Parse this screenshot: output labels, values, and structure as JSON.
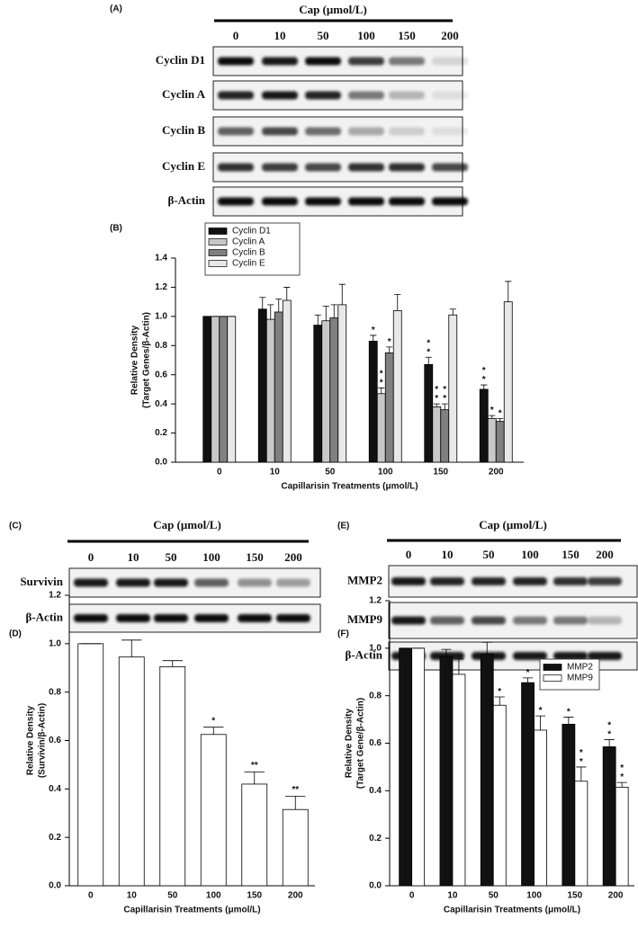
{
  "panel_labels": [
    "(A)",
    "(B)",
    "(C)",
    "(D)",
    "(E)",
    "(F)"
  ],
  "blots": [
    {
      "header": "Cap (μmol/L)",
      "lanes": [
        "0",
        "10",
        "50",
        "100",
        "150",
        "200"
      ],
      "rows": [
        "Cyclin D1",
        "Cyclin A",
        "Cyclin B",
        "Cyclin E",
        "β-Actin"
      ]
    },
    {
      "header": "Cap (μmol/L)",
      "lanes": [
        "0",
        "10",
        "50",
        "100",
        "150",
        "200"
      ],
      "rows": [
        "Survivin",
        "β-Actin"
      ]
    },
    {
      "header": "Cap (μmol/L)",
      "lanes": [
        "0",
        "10",
        "50",
        "100",
        "150",
        "200"
      ],
      "rows": [
        "MMP2",
        "MMP9",
        "β-Actin"
      ]
    }
  ],
  "chart_data": [
    {
      "type": "bar",
      "xlabel": "Capillarisin Treatments (μmol/L)",
      "ylabel": [
        "Relative Density",
        "(Target Genes/β-Actin)"
      ],
      "categories": [
        "0",
        "10",
        "50",
        "100",
        "150",
        "200"
      ],
      "series": [
        {
          "name": "Cyclin D1",
          "color": "#111111",
          "values": [
            1.0,
            1.05,
            0.94,
            0.83,
            0.67,
            0.5
          ],
          "errors": [
            0,
            0.08,
            0.07,
            0.04,
            0.05,
            0.03
          ],
          "stars": [
            null,
            null,
            null,
            "*",
            "**",
            "**"
          ]
        },
        {
          "name": "Cyclin A",
          "color": "#c8c8c8",
          "values": [
            1.0,
            0.98,
            0.97,
            0.47,
            0.38,
            0.3
          ],
          "errors": [
            0,
            0.1,
            0.1,
            0.04,
            0.02,
            0.02
          ],
          "stars": [
            null,
            null,
            null,
            "**",
            "**",
            "*"
          ]
        },
        {
          "name": "Cyclin B",
          "color": "#808080",
          "values": [
            1.0,
            1.03,
            0.99,
            0.75,
            0.36,
            0.28
          ],
          "errors": [
            0,
            0.09,
            0.09,
            0.04,
            0.04,
            0.02
          ],
          "stars": [
            null,
            null,
            null,
            "*",
            "**",
            "*"
          ]
        },
        {
          "name": "Cyclin E",
          "color": "#e8e8e8",
          "values": [
            1.0,
            1.11,
            1.08,
            1.04,
            1.01,
            1.1
          ],
          "errors": [
            0,
            0.09,
            0.14,
            0.11,
            0.04,
            0.14
          ],
          "stars": [
            null,
            null,
            null,
            null,
            null,
            null
          ]
        }
      ],
      "ylim": [
        0,
        1.4
      ],
      "yticks": [
        {
          "value": 0,
          "label": "0.0"
        },
        0.2,
        0.4,
        0.6,
        0.8,
        {
          "value": 1,
          "label": "1.0"
        },
        1.2,
        1.4
      ],
      "legend": "upper left"
    },
    {
      "type": "bar",
      "xlabel": "Capillarisin Treatments (μmol/L)",
      "ylabel": [
        "Relative Density",
        "(Survivin/β-Actin)"
      ],
      "categories": [
        "0",
        "10",
        "50",
        "100",
        "150",
        "200"
      ],
      "values": [
        1.0,
        0.945,
        0.905,
        0.625,
        0.42,
        0.315
      ],
      "errors": [
        0,
        0.07,
        0.025,
        0.03,
        0.05,
        0.055
      ],
      "stars": [
        null,
        null,
        null,
        "*",
        "**",
        "**"
      ],
      "color": "#ffffff",
      "ylim": [
        0,
        1.2
      ],
      "yticks": [
        {
          "value": 0,
          "label": "0.0"
        },
        0.2,
        0.4,
        0.6,
        0.8,
        {
          "value": 1,
          "label": "1.0"
        },
        1.2
      ]
    },
    {
      "type": "bar",
      "xlabel": "Capillarisin Treatments (μmol/L)",
      "ylabel": [
        "Relative Density",
        "(Target Gene/β-Actin)"
      ],
      "categories": [
        "0",
        "10",
        "50",
        "100",
        "150",
        "200"
      ],
      "series": [
        {
          "name": "MMP2",
          "color": "#111111",
          "values": [
            1.0,
            0.965,
            0.975,
            0.855,
            0.68,
            0.585
          ],
          "errors": [
            0,
            0.03,
            0.05,
            0.02,
            0.03,
            0.03
          ],
          "stars": [
            null,
            null,
            null,
            "*",
            "*",
            "**"
          ]
        },
        {
          "name": "MMP9",
          "color": "#ffffff",
          "values": [
            1.0,
            0.89,
            0.76,
            0.655,
            0.44,
            0.415
          ],
          "errors": [
            0,
            0.065,
            0.035,
            0.06,
            0.06,
            0.02
          ],
          "stars": [
            null,
            null,
            "*",
            "*",
            "**",
            "**"
          ]
        }
      ],
      "ylim": [
        0,
        1.2
      ],
      "yticks": [
        {
          "value": 0,
          "label": "0.0"
        },
        0.2,
        0.4,
        0.6,
        0.8,
        {
          "value": 1,
          "label": "1.0"
        },
        1.2
      ],
      "legend": "upper right"
    }
  ]
}
